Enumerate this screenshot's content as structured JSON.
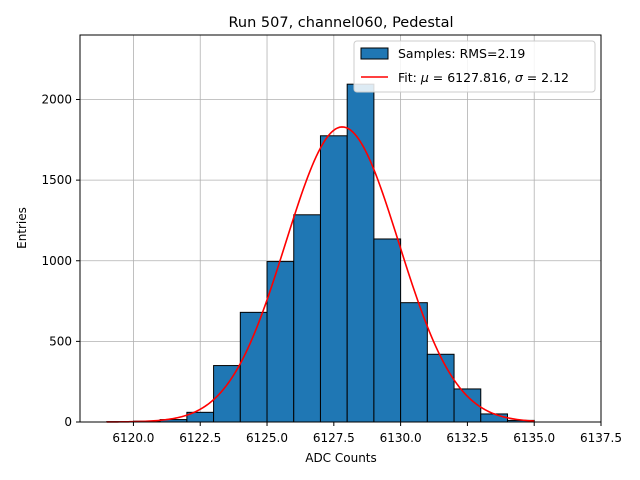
{
  "chart_data": {
    "type": "bar",
    "title": "Run 507, channel060, Pedestal",
    "xlabel": "ADC Counts",
    "ylabel": "Entries",
    "xlim": [
      6118.0,
      6137.5
    ],
    "ylim": [
      0,
      2400
    ],
    "xticks": [
      6120.0,
      6122.5,
      6125.0,
      6127.5,
      6130.0,
      6132.5,
      6135.0,
      6137.5
    ],
    "xtick_labels": [
      "6120.0",
      "6122.5",
      "6125.0",
      "6127.5",
      "6130.0",
      "6132.5",
      "6135.0",
      "6137.5"
    ],
    "yticks": [
      0,
      500,
      1000,
      1500,
      2000
    ],
    "ytick_labels": [
      "0",
      "500",
      "1000",
      "1500",
      "2000"
    ],
    "grid": true,
    "legend_position": "top-right",
    "histogram": {
      "name": "Samples: RMS=2.19",
      "color": "#1f77b4",
      "edge_color": "#000000",
      "bin_edges": [
        6119,
        6120,
        6121,
        6122,
        6123,
        6124,
        6125,
        6126,
        6127,
        6128,
        6129,
        6130,
        6131,
        6132,
        6133,
        6134,
        6135
      ],
      "counts": [
        2,
        5,
        15,
        60,
        350,
        680,
        995,
        1285,
        1775,
        2095,
        1135,
        740,
        420,
        205,
        50,
        10
      ]
    },
    "fit": {
      "name_prefix": "Fit: ",
      "name_mu": "μ",
      "name_mid": " = 6127.816, ",
      "name_sigma": "σ",
      "name_suffix": " = 2.12",
      "color": "#ff0000",
      "mu": 6127.816,
      "sigma": 2.12,
      "amplitude": 1830,
      "x_range": [
        6119,
        6135
      ]
    }
  }
}
